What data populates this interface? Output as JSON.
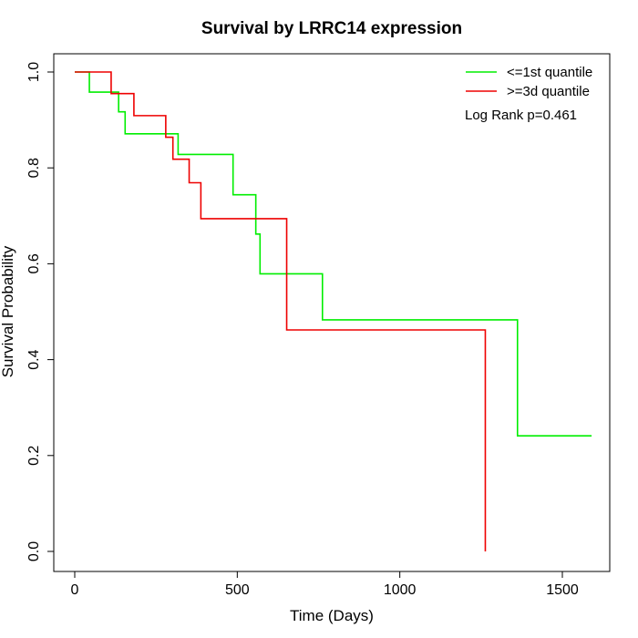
{
  "chart_data": {
    "type": "line",
    "title": "Survival by LRRC14 expression",
    "xlabel": "Time (Days)",
    "ylabel": "Survival Probability",
    "xlim": [
      0,
      1650
    ],
    "ylim": [
      0,
      1.0
    ],
    "x_ticks": [
      "0",
      "500",
      "1000",
      "1500"
    ],
    "y_ticks": [
      "0.0",
      "0.2",
      "0.4",
      "0.6",
      "0.8",
      "1.0"
    ],
    "legend_position": "top-right",
    "annotation": "Log Rank p=0.461",
    "series": [
      {
        "name": "<=1st quantile",
        "color": "#00ee00",
        "steps": [
          [
            0,
            1.0
          ],
          [
            45,
            0.958
          ],
          [
            135,
            0.917
          ],
          [
            155,
            0.871
          ],
          [
            318,
            0.828
          ],
          [
            487,
            0.744
          ],
          [
            557,
            0.662
          ],
          [
            570,
            0.579
          ],
          [
            762,
            0.483
          ],
          [
            1362,
            0.241
          ],
          [
            1590,
            0.241
          ]
        ]
      },
      {
        "name": ">=3d quantile",
        "color": "#ee0000",
        "steps": [
          [
            0,
            1.0
          ],
          [
            112,
            0.955
          ],
          [
            182,
            0.909
          ],
          [
            280,
            0.864
          ],
          [
            302,
            0.818
          ],
          [
            352,
            0.769
          ],
          [
            388,
            0.694
          ],
          [
            652,
            0.462
          ],
          [
            1263,
            0.0
          ]
        ]
      }
    ]
  }
}
